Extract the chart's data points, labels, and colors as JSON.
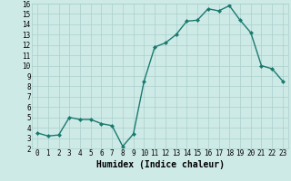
{
  "x": [
    0,
    1,
    2,
    3,
    4,
    5,
    6,
    7,
    8,
    9,
    10,
    11,
    12,
    13,
    14,
    15,
    16,
    17,
    18,
    19,
    20,
    21,
    22,
    23
  ],
  "y": [
    3.5,
    3.2,
    3.3,
    5.0,
    4.8,
    4.8,
    4.4,
    4.2,
    2.2,
    3.4,
    8.5,
    11.8,
    12.2,
    13.0,
    14.3,
    14.4,
    15.5,
    15.3,
    15.8,
    14.4,
    13.2,
    10.0,
    9.7,
    8.5
  ],
  "line_color": "#1a7a6e",
  "marker": "D",
  "marker_size": 2.0,
  "bg_color": "#ceeae7",
  "grid_color": "#aacfcc",
  "xlabel": "Humidex (Indice chaleur)",
  "xlim": [
    -0.5,
    23.5
  ],
  "ylim": [
    2,
    16
  ],
  "yticks": [
    2,
    3,
    4,
    5,
    6,
    7,
    8,
    9,
    10,
    11,
    12,
    13,
    14,
    15,
    16
  ],
  "xticks": [
    0,
    1,
    2,
    3,
    4,
    5,
    6,
    7,
    8,
    9,
    10,
    11,
    12,
    13,
    14,
    15,
    16,
    17,
    18,
    19,
    20,
    21,
    22,
    23
  ],
  "tick_fontsize": 5.5,
  "label_fontsize": 7.0,
  "linewidth": 1.0
}
